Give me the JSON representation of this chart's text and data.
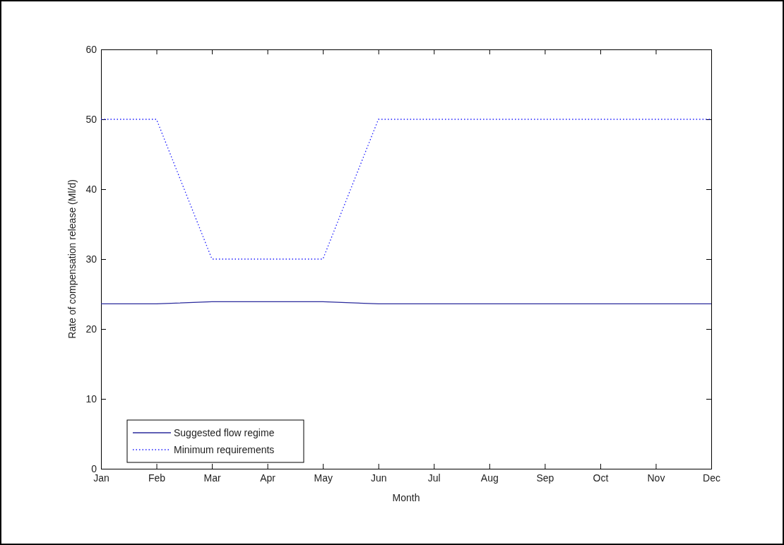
{
  "chart_data": {
    "type": "line",
    "xlabel": "Month",
    "ylabel": "Rate of compensation release (Ml/d)",
    "categories": [
      "Jan",
      "Feb",
      "Mar",
      "Apr",
      "May",
      "Jun",
      "Jul",
      "Aug",
      "Sep",
      "Oct",
      "Nov",
      "Dec"
    ],
    "ylim": [
      0,
      60
    ],
    "yticks": [
      0,
      10,
      20,
      30,
      40,
      50,
      60
    ],
    "grid": false,
    "legend": "bottom left",
    "marker": "none",
    "series": [
      {
        "name": "Suggested flow regime",
        "color": "#2a2a9c",
        "line_style": "solid",
        "values": [
          23.6,
          23.6,
          23.9,
          23.9,
          23.9,
          23.6,
          23.6,
          23.6,
          23.6,
          23.6,
          23.6,
          23.6
        ]
      },
      {
        "name": "Minimum requirements",
        "color": "#1a1aff",
        "line_style": "dotted",
        "values": [
          50,
          50,
          30,
          30,
          30,
          50,
          50,
          50,
          50,
          50,
          50,
          50
        ]
      }
    ]
  }
}
